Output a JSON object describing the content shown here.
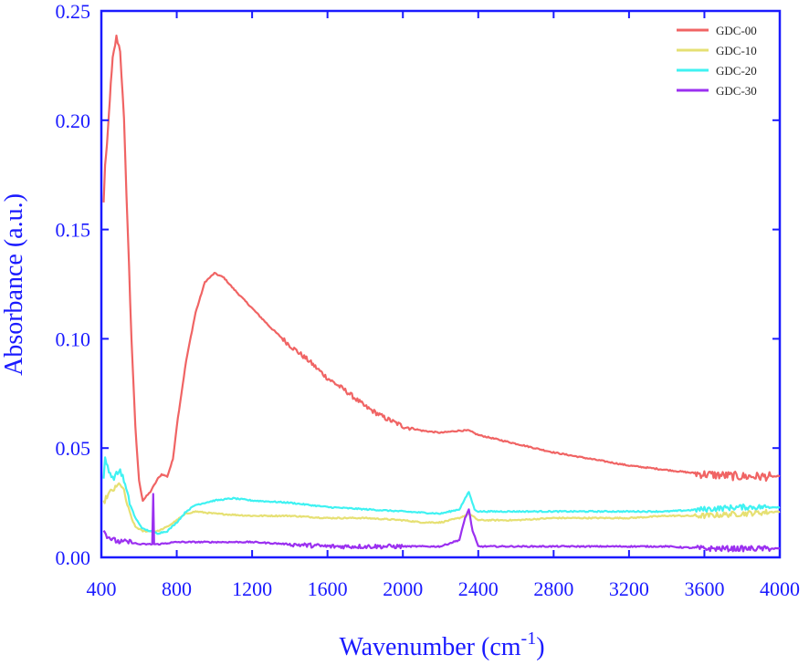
{
  "chart_data": {
    "type": "line",
    "title": "",
    "xlabel": "Wavenumber (cm",
    "xlabel_superscript": "-1",
    "xlabel_suffix": ")",
    "ylabel": "Absorbance (a.u.)",
    "xlim": [
      400,
      4000
    ],
    "ylim": [
      0.0,
      0.25
    ],
    "x_ticks": [
      400,
      800,
      1200,
      1600,
      2000,
      2400,
      2800,
      3200,
      3600,
      4000
    ],
    "x_tick_labels": [
      "400",
      "800",
      "1200",
      "1600",
      "2000",
      "2400",
      "2800",
      "3200",
      "3600",
      "4000"
    ],
    "y_ticks": [
      0.0,
      0.05,
      0.1,
      0.15,
      0.2,
      0.25
    ],
    "y_tick_labels": [
      "0.00",
      "0.05",
      "0.10",
      "0.15",
      "0.20",
      "0.25"
    ],
    "grid": false,
    "legend_position": "top-right",
    "axis_color": "#1a1aff",
    "series": [
      {
        "name": "GDC-00",
        "color": "#f06464",
        "points": [
          [
            412,
            0.162
          ],
          [
            420,
            0.18
          ],
          [
            430,
            0.188
          ],
          [
            445,
            0.21
          ],
          [
            460,
            0.228
          ],
          [
            480,
            0.238
          ],
          [
            500,
            0.232
          ],
          [
            520,
            0.2
          ],
          [
            540,
            0.15
          ],
          [
            560,
            0.1
          ],
          [
            580,
            0.06
          ],
          [
            600,
            0.035
          ],
          [
            620,
            0.026
          ],
          [
            640,
            0.028
          ],
          [
            660,
            0.03
          ],
          [
            680,
            0.033
          ],
          [
            700,
            0.036
          ],
          [
            720,
            0.038
          ],
          [
            750,
            0.037
          ],
          [
            780,
            0.045
          ],
          [
            800,
            0.06
          ],
          [
            850,
            0.09
          ],
          [
            900,
            0.112
          ],
          [
            950,
            0.126
          ],
          [
            1000,
            0.13
          ],
          [
            1050,
            0.128
          ],
          [
            1100,
            0.123
          ],
          [
            1200,
            0.114
          ],
          [
            1300,
            0.105
          ],
          [
            1400,
            0.097
          ],
          [
            1500,
            0.09
          ],
          [
            1600,
            0.082
          ],
          [
            1700,
            0.076
          ],
          [
            1800,
            0.069
          ],
          [
            1900,
            0.064
          ],
          [
            2000,
            0.06
          ],
          [
            2100,
            0.058
          ],
          [
            2200,
            0.057
          ],
          [
            2300,
            0.058
          ],
          [
            2350,
            0.058
          ],
          [
            2400,
            0.056
          ],
          [
            2500,
            0.054
          ],
          [
            2600,
            0.052
          ],
          [
            2800,
            0.048
          ],
          [
            3000,
            0.045
          ],
          [
            3200,
            0.042
          ],
          [
            3400,
            0.04
          ],
          [
            3600,
            0.038
          ],
          [
            3800,
            0.037
          ],
          [
            4000,
            0.037
          ]
        ]
      },
      {
        "name": "GDC-10",
        "color": "#e6e073",
        "points": [
          [
            412,
            0.025
          ],
          [
            430,
            0.028
          ],
          [
            450,
            0.03
          ],
          [
            480,
            0.032
          ],
          [
            500,
            0.034
          ],
          [
            520,
            0.03
          ],
          [
            550,
            0.02
          ],
          [
            580,
            0.014
          ],
          [
            620,
            0.012
          ],
          [
            660,
            0.012
          ],
          [
            700,
            0.012
          ],
          [
            750,
            0.014
          ],
          [
            800,
            0.017
          ],
          [
            850,
            0.02
          ],
          [
            900,
            0.021
          ],
          [
            1000,
            0.02
          ],
          [
            1200,
            0.019
          ],
          [
            1400,
            0.019
          ],
          [
            1600,
            0.018
          ],
          [
            1800,
            0.018
          ],
          [
            2000,
            0.017
          ],
          [
            2100,
            0.016
          ],
          [
            2200,
            0.016
          ],
          [
            2300,
            0.018
          ],
          [
            2350,
            0.02
          ],
          [
            2400,
            0.017
          ],
          [
            2600,
            0.017
          ],
          [
            2800,
            0.018
          ],
          [
            3000,
            0.018
          ],
          [
            3200,
            0.018
          ],
          [
            3400,
            0.019
          ],
          [
            3600,
            0.019
          ],
          [
            3800,
            0.02
          ],
          [
            4000,
            0.021
          ]
        ]
      },
      {
        "name": "GDC-20",
        "color": "#3ff2f2",
        "points": [
          [
            412,
            0.035
          ],
          [
            420,
            0.045
          ],
          [
            440,
            0.04
          ],
          [
            460,
            0.036
          ],
          [
            480,
            0.038
          ],
          [
            500,
            0.04
          ],
          [
            520,
            0.035
          ],
          [
            550,
            0.025
          ],
          [
            580,
            0.018
          ],
          [
            620,
            0.013
          ],
          [
            660,
            0.012
          ],
          [
            700,
            0.011
          ],
          [
            750,
            0.012
          ],
          [
            800,
            0.016
          ],
          [
            850,
            0.021
          ],
          [
            900,
            0.024
          ],
          [
            1000,
            0.026
          ],
          [
            1100,
            0.027
          ],
          [
            1200,
            0.026
          ],
          [
            1400,
            0.025
          ],
          [
            1600,
            0.023
          ],
          [
            1800,
            0.022
          ],
          [
            2000,
            0.021
          ],
          [
            2200,
            0.02
          ],
          [
            2300,
            0.022
          ],
          [
            2350,
            0.03
          ],
          [
            2380,
            0.022
          ],
          [
            2400,
            0.021
          ],
          [
            2600,
            0.021
          ],
          [
            2800,
            0.021
          ],
          [
            3000,
            0.021
          ],
          [
            3200,
            0.021
          ],
          [
            3400,
            0.021
          ],
          [
            3600,
            0.022
          ],
          [
            3800,
            0.023
          ],
          [
            4000,
            0.023
          ]
        ]
      },
      {
        "name": "GDC-30",
        "color": "#9b30f0",
        "points": [
          [
            412,
            0.012
          ],
          [
            430,
            0.01
          ],
          [
            460,
            0.008
          ],
          [
            500,
            0.007
          ],
          [
            550,
            0.007
          ],
          [
            600,
            0.006
          ],
          [
            650,
            0.006
          ],
          [
            670,
            0.006
          ],
          [
            675,
            0.029
          ],
          [
            680,
            0.006
          ],
          [
            700,
            0.006
          ],
          [
            800,
            0.007
          ],
          [
            900,
            0.007
          ],
          [
            1000,
            0.007
          ],
          [
            1200,
            0.007
          ],
          [
            1400,
            0.006
          ],
          [
            1600,
            0.005
          ],
          [
            1800,
            0.005
          ],
          [
            2000,
            0.005
          ],
          [
            2200,
            0.005
          ],
          [
            2300,
            0.008
          ],
          [
            2330,
            0.018
          ],
          [
            2350,
            0.022
          ],
          [
            2370,
            0.012
          ],
          [
            2400,
            0.005
          ],
          [
            2600,
            0.005
          ],
          [
            2800,
            0.005
          ],
          [
            3000,
            0.005
          ],
          [
            3200,
            0.005
          ],
          [
            3400,
            0.005
          ],
          [
            3600,
            0.004
          ],
          [
            3800,
            0.004
          ],
          [
            4000,
            0.004
          ]
        ]
      }
    ]
  }
}
